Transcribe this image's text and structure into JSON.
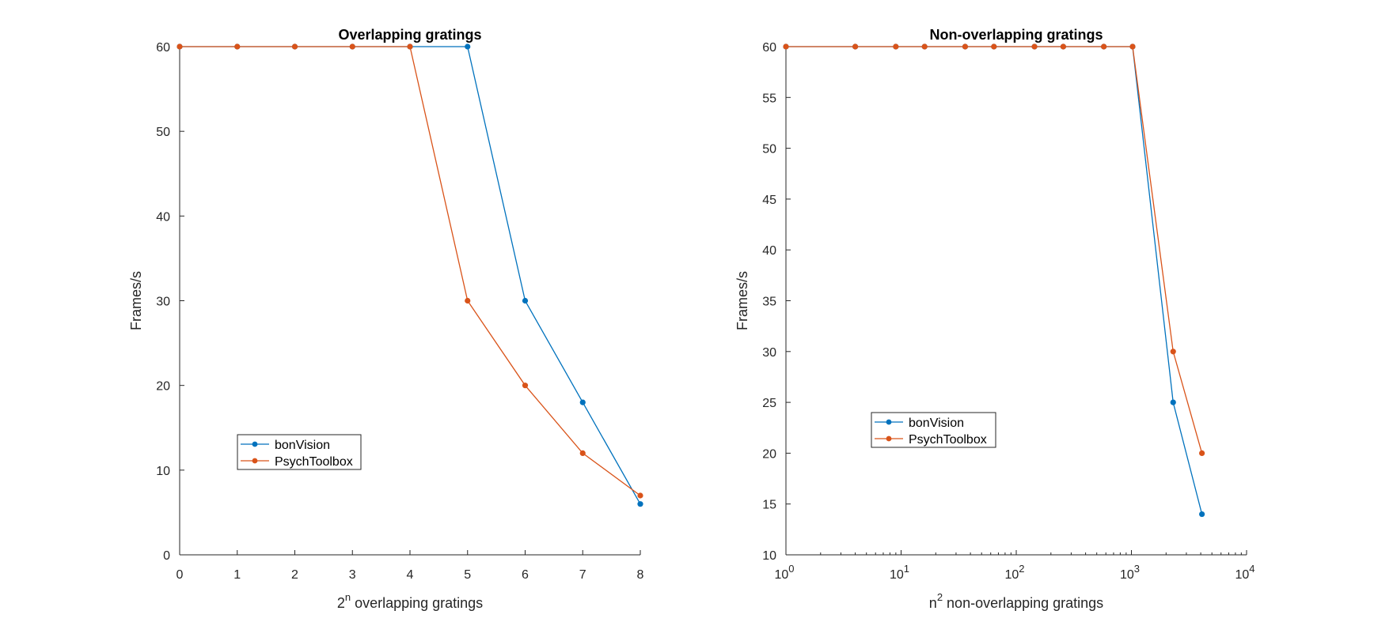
{
  "chart_data": [
    {
      "type": "line",
      "title": "Overlapping gratings",
      "xlabel_base": "2",
      "xlabel_exp": "n",
      "xlabel_rest": " overlapping gratings",
      "ylabel": "Frames/s",
      "xscale": "linear",
      "xlim": [
        0,
        8
      ],
      "ylim": [
        0,
        60
      ],
      "xticks": [
        0,
        1,
        2,
        3,
        4,
        5,
        6,
        7,
        8
      ],
      "yticks": [
        0,
        10,
        20,
        30,
        40,
        50,
        60
      ],
      "legend_position": "lower-left",
      "series": [
        {
          "name": "bonVision",
          "color": "#0072BD",
          "x": [
            0,
            1,
            2,
            3,
            4,
            5,
            6,
            7,
            8
          ],
          "y": [
            60,
            60,
            60,
            60,
            60,
            60,
            30,
            18,
            6
          ]
        },
        {
          "name": "PsychToolbox",
          "color": "#D95319",
          "x": [
            0,
            1,
            2,
            3,
            4,
            5,
            6,
            7,
            8
          ],
          "y": [
            60,
            60,
            60,
            60,
            60,
            30,
            20,
            12,
            7
          ]
        }
      ]
    },
    {
      "type": "line",
      "title": "Non-overlapping gratings",
      "xlabel_base": "n",
      "xlabel_exp": "2",
      "xlabel_rest": " non-overlapping gratings",
      "ylabel": "Frames/s",
      "xscale": "log",
      "xlim": [
        1,
        10000
      ],
      "ylim": [
        10,
        60
      ],
      "xticks": [
        1,
        10,
        100,
        1000,
        10000
      ],
      "xtick_exponents": [
        "0",
        "1",
        "2",
        "3",
        "4"
      ],
      "xtick_base": "10",
      "yticks": [
        10,
        15,
        20,
        25,
        30,
        35,
        40,
        45,
        50,
        55,
        60
      ],
      "legend_position": "lower-left",
      "series": [
        {
          "name": "bonVision",
          "color": "#0072BD",
          "x": [
            1,
            4,
            9,
            16,
            36,
            64,
            144,
            256,
            576,
            1024,
            2304,
            4096
          ],
          "y": [
            60,
            60,
            60,
            60,
            60,
            60,
            60,
            60,
            60,
            60,
            25,
            14
          ]
        },
        {
          "name": "PsychToolbox",
          "color": "#D95319",
          "x": [
            1,
            4,
            9,
            16,
            36,
            64,
            144,
            256,
            576,
            1024,
            2304,
            4096
          ],
          "y": [
            60,
            60,
            60,
            60,
            60,
            60,
            60,
            60,
            60,
            60,
            30,
            20
          ]
        }
      ]
    }
  ]
}
